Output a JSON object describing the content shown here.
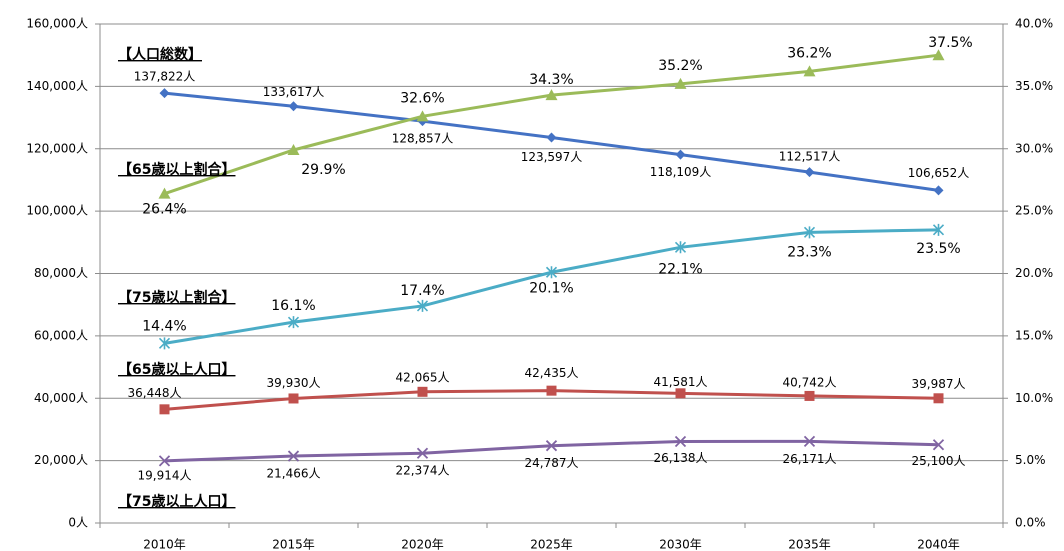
{
  "chart_data": {
    "type": "line",
    "categories": [
      "2010年",
      "2015年",
      "2020年",
      "2025年",
      "2030年",
      "2035年",
      "2040年"
    ],
    "ylim": [
      0,
      160000
    ],
    "yticks": [
      {
        "value": 0,
        "label": "0人"
      },
      {
        "value": 20000,
        "label": "20,000人"
      },
      {
        "value": 40000,
        "label": "40,000人"
      },
      {
        "value": 60000,
        "label": "60,000人"
      },
      {
        "value": 80000,
        "label": "80,000人"
      },
      {
        "value": 100000,
        "label": "100,000人"
      },
      {
        "value": 120000,
        "label": "120,000人"
      },
      {
        "value": 140000,
        "label": "140,000人"
      },
      {
        "value": 160000,
        "label": "160,000人"
      }
    ],
    "y2lim": [
      0,
      40
    ],
    "y2ticks": [
      {
        "value": 0,
        "label": "0.0%"
      },
      {
        "value": 5,
        "label": "5.0%"
      },
      {
        "value": 10,
        "label": "10.0%"
      },
      {
        "value": 15,
        "label": "15.0%"
      },
      {
        "value": 20,
        "label": "20.0%"
      },
      {
        "value": 25,
        "label": "25.0%"
      },
      {
        "value": 30,
        "label": "30.0%"
      },
      {
        "value": 35,
        "label": "35.0%"
      },
      {
        "value": 40,
        "label": "40.0%"
      }
    ],
    "grid": true,
    "ratio_label_color": "#ff0000",
    "series": [
      {
        "name": "【人口総数】",
        "color": "#4472c4",
        "marker": "diamond",
        "values": [
          137822,
          133617,
          128857,
          123597,
          118109,
          112517,
          106652
        ],
        "value_labels": [
          "137,822人",
          "133,617人",
          "128,857人",
          "123,597人",
          "118,109人",
          "112,517人",
          "106,652人"
        ]
      },
      {
        "name": "【65歳以上割合】",
        "color": "#9bbb59",
        "marker": "triangle",
        "axis": "y2",
        "values": [
          26.4,
          29.9,
          32.6,
          34.3,
          35.2,
          36.2,
          37.5
        ],
        "value_labels": [
          "26.4%",
          "29.9%",
          "32.6%",
          "34.3%",
          "35.2%",
          "36.2%",
          "37.5%"
        ]
      },
      {
        "name": "【75歳以上割合】",
        "color": "#4bacc6",
        "marker": "star",
        "axis": "y2",
        "values": [
          14.4,
          16.1,
          17.4,
          20.1,
          22.1,
          23.3,
          23.5
        ],
        "value_labels": [
          "14.4%",
          "16.1%",
          "17.4%",
          "20.1%",
          "22.1%",
          "23.3%",
          "23.5%"
        ]
      },
      {
        "name": "【65歳以上人口】",
        "color": "#c0504d",
        "marker": "square",
        "values": [
          36448,
          39930,
          42065,
          42435,
          41581,
          40742,
          39987
        ],
        "value_labels": [
          "36,448人",
          "39,930人",
          "42,065人",
          "42,435人",
          "41,581人",
          "40,742人",
          "39,987人"
        ]
      },
      {
        "name": "【75歳以上人口】",
        "color": "#8064a2",
        "marker": "x",
        "values": [
          19914,
          21466,
          22374,
          24787,
          26138,
          26171,
          25100
        ],
        "value_labels": [
          "19,914人",
          "21,466人",
          "22,374人",
          "24,787人",
          "26,138人",
          "26,171人",
          "25,100人"
        ]
      }
    ]
  }
}
